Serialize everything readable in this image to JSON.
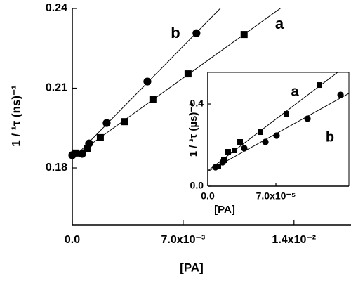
{
  "chart_data": [
    {
      "type": "scatter",
      "xlabel": "[PA]",
      "ylabel": "1 / ¹τ (ns)⁻¹",
      "xlim": [
        0,
        0.0176
      ],
      "ylim": [
        0.1586,
        0.24
      ],
      "xticks": [
        {
          "value": 0,
          "label": "0.0"
        },
        {
          "value": 0.007,
          "label": "7.0x10⁻³"
        },
        {
          "value": 0.014,
          "label": "1.4x10⁻²"
        }
      ],
      "yticks": [
        0.18,
        0.21,
        0.24
      ],
      "fit": true,
      "series": [
        {
          "name": "a",
          "color": "#000000",
          "marker": "square",
          "x": [
            0.00022,
            0.00093,
            0.00177,
            0.00332,
            0.00509,
            0.00731,
            0.01085
          ],
          "values": [
            0.1856,
            0.1874,
            0.1914,
            0.1974,
            0.2059,
            0.2154,
            0.2302
          ]
        },
        {
          "name": "b",
          "color": "#000000",
          "marker": "circle",
          "x": [
            0,
            0.00062,
            0.00106,
            0.00217,
            0.00474,
            0.00784
          ],
          "values": [
            0.1848,
            0.1853,
            0.1892,
            0.1969,
            0.2125,
            0.2307
          ]
        }
      ]
    },
    {
      "type": "scatter",
      "xlabel": "[PA]",
      "ylabel": "1 / ³τ (µs)⁻¹",
      "xlim": [
        0,
        0.000145
      ],
      "ylim": [
        0,
        0.554
      ],
      "xticks": [
        {
          "value": 0,
          "label": "0.0"
        },
        {
          "value": 7e-05,
          "label": "7.0x10⁻⁵"
        }
      ],
      "yticks": [
        {
          "value": 0,
          "label": "0.0"
        },
        0.4
      ],
      "fit": true,
      "series": [
        {
          "name": "a",
          "color": "#000000",
          "marker": "square",
          "x": [
            1.08e-05,
            1.66e-05,
            2.09e-05,
            2.74e-05,
            3.32e-05,
            5.41e-05,
            8.08e-05,
            0.0001147
          ],
          "values": [
            0.0957,
            0.1265,
            0.1675,
            0.1744,
            0.2154,
            0.2632,
            0.3521,
            0.4923
          ]
        },
        {
          "name": "b",
          "color": "#000000",
          "marker": "circle",
          "x": [
            7.9e-06,
            1.52e-05,
            3.75e-05,
            5.92e-05,
            7.07e-05,
            0.0001025,
            0.0001364
          ],
          "values": [
            0.0923,
            0.1162,
            0.1846,
            0.2154,
            0.2462,
            0.3282,
            0.4444
          ]
        }
      ]
    }
  ]
}
